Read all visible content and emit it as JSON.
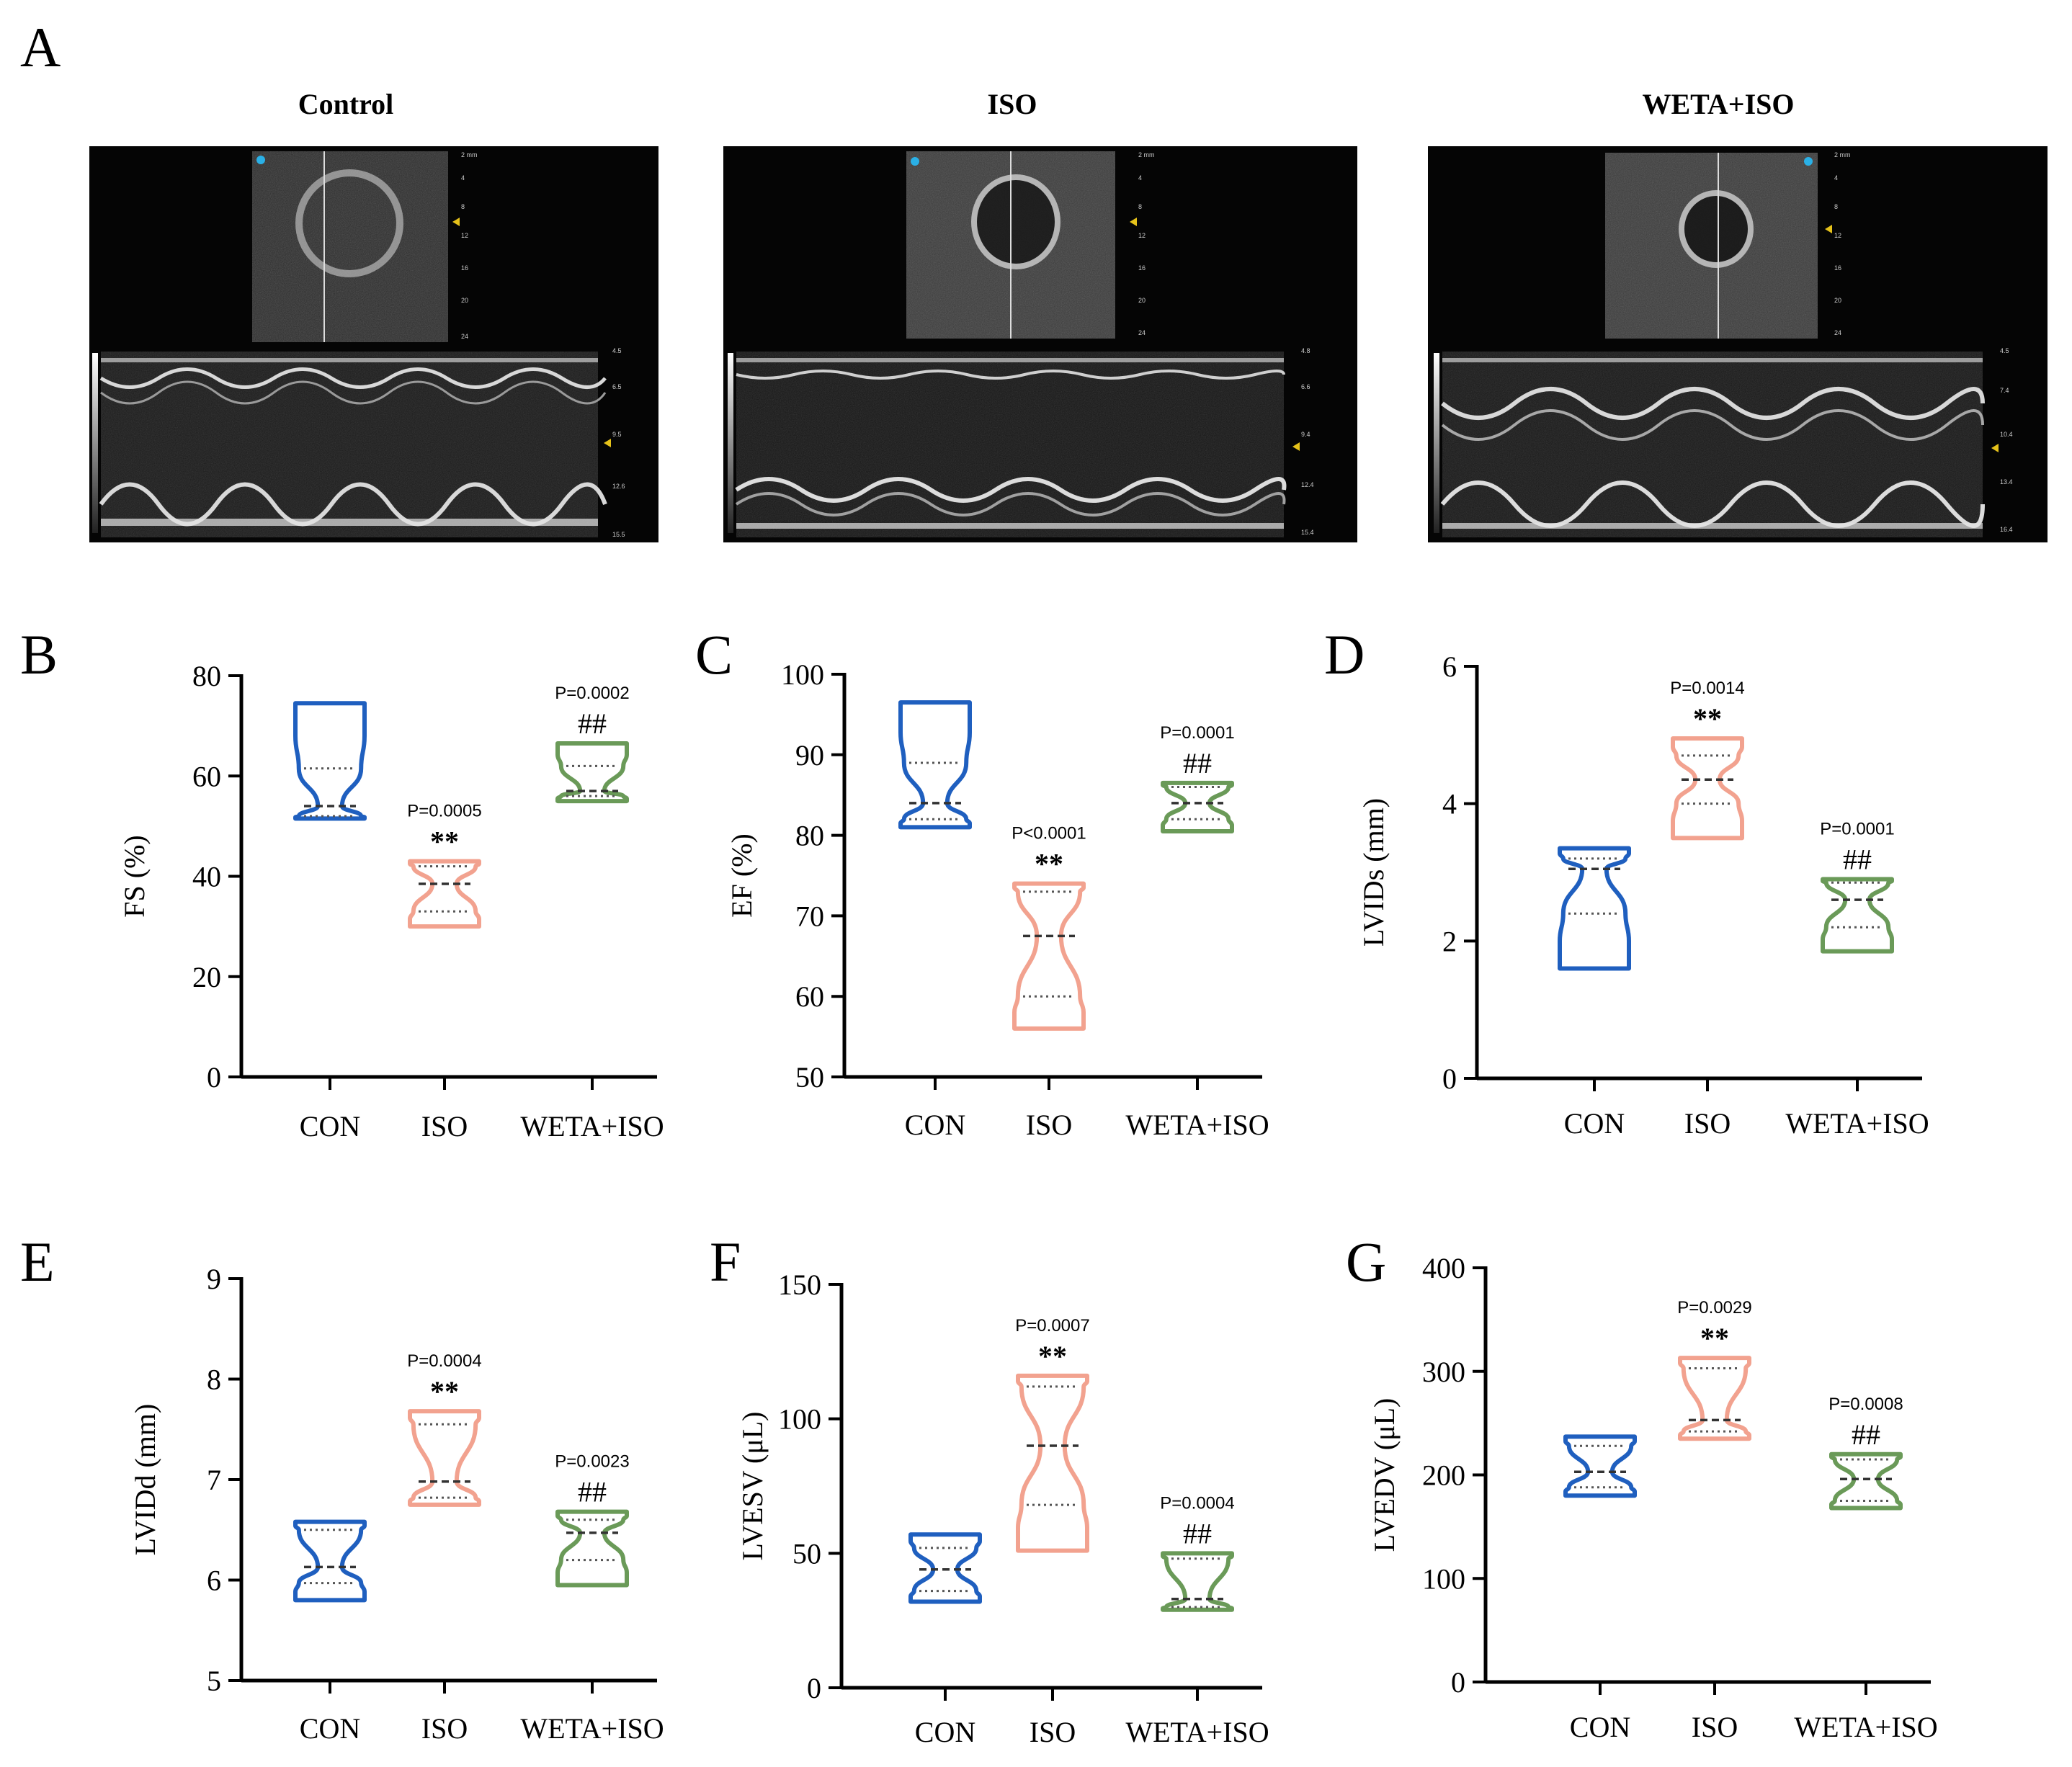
{
  "figure": {
    "panel_a": {
      "letter": "A",
      "images": [
        {
          "title": "Control",
          "mode_ticks": [
            "2 mm",
            "4",
            "8",
            "12",
            "16",
            "20",
            "24"
          ],
          "mmode_ticks": [
            "4.5",
            "6.5",
            "9.5",
            "12.6",
            "15.5"
          ]
        },
        {
          "title": "ISO",
          "mode_ticks": [
            "2 mm",
            "4",
            "8",
            "12",
            "16",
            "20",
            "24"
          ],
          "mmode_ticks": [
            "4.8",
            "6.6",
            "9.4",
            "12.4",
            "15.4"
          ]
        },
        {
          "title": "WETA+ISO",
          "mode_ticks": [
            "2 mm",
            "4",
            "8",
            "12",
            "16",
            "20",
            "24"
          ],
          "mmode_ticks": [
            "4.5",
            "7.4",
            "10.4",
            "13.4",
            "16.4"
          ]
        }
      ]
    }
  },
  "colors": {
    "con": "#1f5fbf",
    "iso": "#f2a28f",
    "weta": "#6a9a58"
  },
  "chart_data": [
    {
      "panel": "B",
      "type": "violin",
      "ylabel": "FS (%)",
      "ylim": [
        0,
        80
      ],
      "yticks": [
        0,
        20,
        40,
        60,
        80
      ],
      "categories": [
        "CON",
        "ISO",
        "WETA+ISO"
      ],
      "series": [
        {
          "category": "CON",
          "min": 51.5,
          "max": 74.5,
          "median": 54,
          "q1": 52,
          "q3": 61.5,
          "marker": "",
          "p_value": ""
        },
        {
          "category": "ISO",
          "min": 30,
          "max": 43,
          "median": 38.5,
          "q1": 33,
          "q3": 42,
          "marker": "**",
          "p_value": "P=0.0005"
        },
        {
          "category": "WETA+ISO",
          "min": 55,
          "max": 66.5,
          "median": 57,
          "q1": 56,
          "q3": 62,
          "marker": "##",
          "p_value": "P=0.0002"
        }
      ]
    },
    {
      "panel": "C",
      "type": "violin",
      "ylabel": "EF (%)",
      "ylim": [
        50,
        100
      ],
      "yticks": [
        50,
        60,
        70,
        80,
        90,
        100
      ],
      "categories": [
        "CON",
        "ISO",
        "WETA+ISO"
      ],
      "series": [
        {
          "category": "CON",
          "min": 81,
          "max": 96.5,
          "median": 84,
          "q1": 82,
          "q3": 89,
          "marker": "",
          "p_value": ""
        },
        {
          "category": "ISO",
          "min": 56,
          "max": 74,
          "median": 67.5,
          "q1": 60,
          "q3": 73,
          "marker": "**",
          "p_value": "P<0.0001"
        },
        {
          "category": "WETA+ISO",
          "min": 80.5,
          "max": 86.5,
          "median": 84,
          "q1": 82,
          "q3": 86,
          "marker": "##",
          "p_value": "P=0.0001"
        }
      ]
    },
    {
      "panel": "D",
      "type": "violin",
      "ylabel": "LVIDs (mm)",
      "ylim": [
        0,
        6
      ],
      "yticks": [
        0,
        2,
        4,
        6
      ],
      "categories": [
        "CON",
        "ISO",
        "WETA+ISO"
      ],
      "series": [
        {
          "category": "CON",
          "min": 1.6,
          "max": 3.35,
          "median": 3.05,
          "q1": 2.4,
          "q3": 3.2,
          "marker": "",
          "p_value": ""
        },
        {
          "category": "ISO",
          "min": 3.5,
          "max": 4.95,
          "median": 4.35,
          "q1": 4.0,
          "q3": 4.7,
          "marker": "**",
          "p_value": "P=0.0014"
        },
        {
          "category": "WETA+ISO",
          "min": 1.85,
          "max": 2.9,
          "median": 2.6,
          "q1": 2.2,
          "q3": 2.85,
          "marker": "##",
          "p_value": "P=0.0001"
        }
      ]
    },
    {
      "panel": "E",
      "type": "violin",
      "ylabel": "LVIDd (mm)",
      "ylim": [
        5,
        9
      ],
      "yticks": [
        5,
        6,
        7,
        8,
        9
      ],
      "categories": [
        "CON",
        "ISO",
        "WETA+ISO"
      ],
      "series": [
        {
          "category": "CON",
          "min": 5.8,
          "max": 6.58,
          "median": 6.13,
          "q1": 5.97,
          "q3": 6.5,
          "marker": "",
          "p_value": ""
        },
        {
          "category": "ISO",
          "min": 6.75,
          "max": 7.68,
          "median": 6.98,
          "q1": 6.82,
          "q3": 7.55,
          "marker": "**",
          "p_value": "P=0.0004"
        },
        {
          "category": "WETA+ISO",
          "min": 5.95,
          "max": 6.68,
          "median": 6.47,
          "q1": 6.2,
          "q3": 6.6,
          "marker": "##",
          "p_value": "P=0.0023"
        }
      ]
    },
    {
      "panel": "F",
      "type": "violin",
      "ylabel": "LVESV (μL)",
      "ylim": [
        0,
        150
      ],
      "yticks": [
        0,
        50,
        100,
        150
      ],
      "categories": [
        "CON",
        "ISO",
        "WETA+ISO"
      ],
      "series": [
        {
          "category": "CON",
          "min": 32,
          "max": 57,
          "median": 44,
          "q1": 36,
          "q3": 52,
          "marker": "",
          "p_value": ""
        },
        {
          "category": "ISO",
          "min": 51,
          "max": 116,
          "median": 90,
          "q1": 68,
          "q3": 112,
          "marker": "**",
          "p_value": "P=0.0007"
        },
        {
          "category": "WETA+ISO",
          "min": 29,
          "max": 50,
          "median": 33,
          "q1": 30,
          "q3": 48,
          "marker": "##",
          "p_value": "P=0.0004"
        }
      ]
    },
    {
      "panel": "G",
      "type": "violin",
      "ylabel": "LVEDV (μL)",
      "ylim": [
        0,
        400
      ],
      "yticks": [
        0,
        100,
        200,
        300,
        400
      ],
      "categories": [
        "CON",
        "ISO",
        "WETA+ISO"
      ],
      "series": [
        {
          "category": "CON",
          "min": 180,
          "max": 237,
          "median": 203,
          "q1": 188,
          "q3": 228,
          "marker": "",
          "p_value": ""
        },
        {
          "category": "ISO",
          "min": 235,
          "max": 313,
          "median": 253,
          "q1": 242,
          "q3": 303,
          "marker": "**",
          "p_value": "P=0.0029"
        },
        {
          "category": "WETA+ISO",
          "min": 168,
          "max": 220,
          "median": 196,
          "q1": 175,
          "q3": 215,
          "marker": "##",
          "p_value": "P=0.0008"
        }
      ]
    }
  ]
}
